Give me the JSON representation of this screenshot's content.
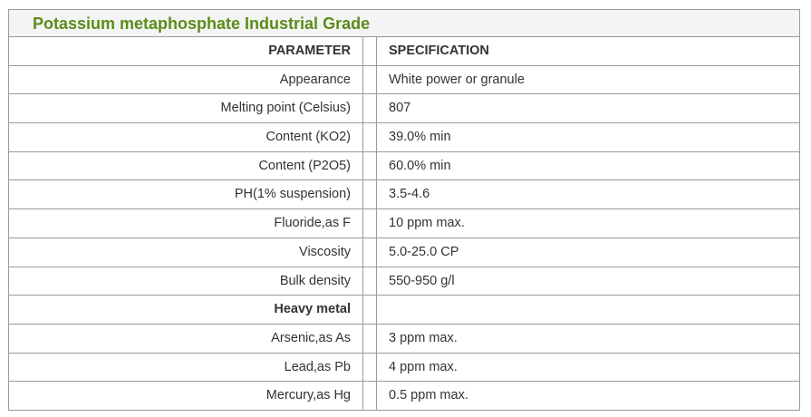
{
  "title": "Potassium metaphosphate Industrial Grade",
  "table": {
    "header": [
      "PARAMETER",
      "SPECIFICATION"
    ],
    "rows": [
      [
        "Appearance",
        "White power or granule"
      ],
      [
        "Melting point (Celsius)",
        "807"
      ],
      [
        "Content (KO2)",
        "39.0% min"
      ],
      [
        "Content (P2O5)",
        "60.0% min"
      ],
      [
        "PH(1% suspension)",
        "3.5-4.6"
      ],
      [
        "Fluoride,as F",
        "10 ppm max."
      ],
      [
        "Viscosity",
        "5.0-25.0 CP"
      ],
      [
        "Bulk density",
        "550-950 g/l"
      ],
      [
        "Heavy metal"
      ],
      [
        "Arsenic,as As",
        "3 ppm max."
      ],
      [
        "Lead,as Pb",
        "4 ppm max."
      ],
      [
        "Mercury,as Hg",
        "0.5 ppm max."
      ]
    ]
  }
}
